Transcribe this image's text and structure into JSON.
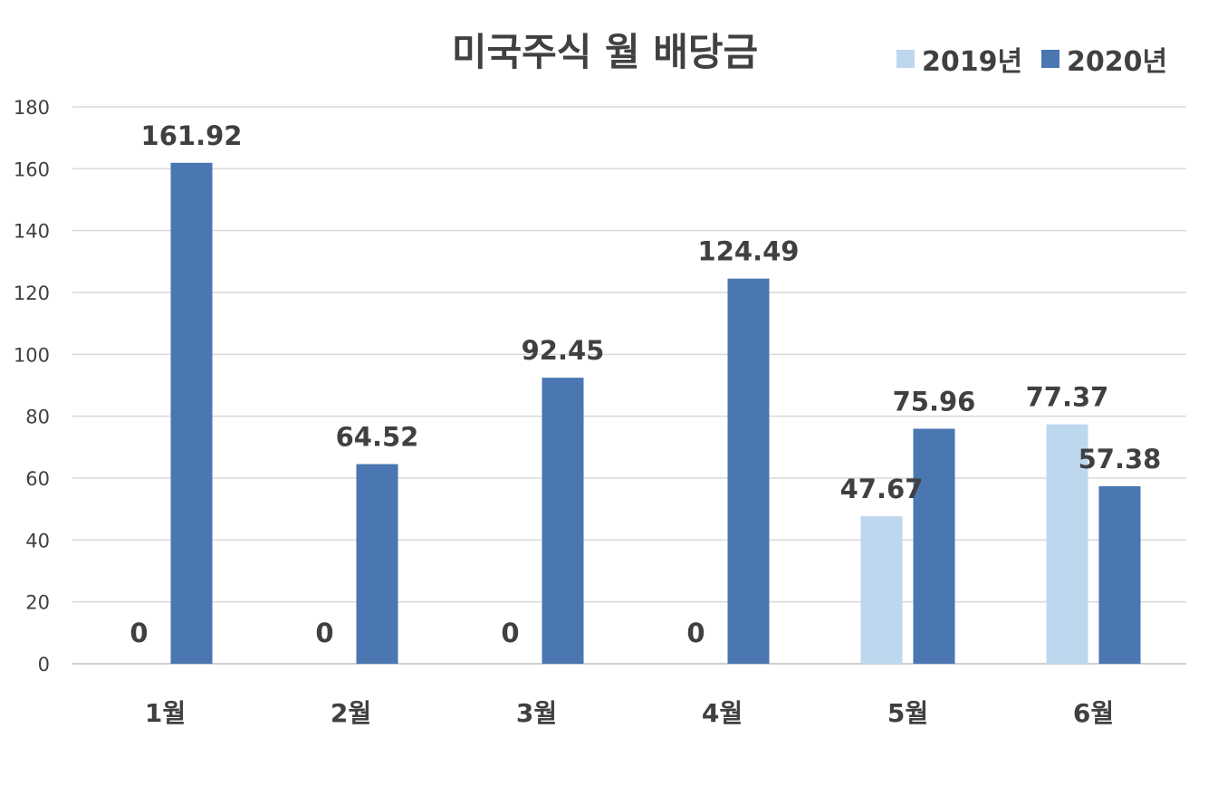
{
  "chart_data": {
    "type": "bar",
    "title": "미국주식 월 배당금",
    "categories": [
      "1월",
      "2월",
      "3월",
      "4월",
      "5월",
      "6월"
    ],
    "series": [
      {
        "name": "2019년",
        "values": [
          0,
          0,
          0,
          0,
          47.67,
          77.37
        ],
        "color": "#bdd7ee"
      },
      {
        "name": "2020년",
        "values": [
          161.92,
          64.52,
          92.45,
          124.49,
          75.96,
          57.38
        ],
        "color": "#4a76b1"
      }
    ],
    "data_labels": [
      [
        "0",
        "0",
        "0",
        "0",
        "47.67",
        "77.37"
      ],
      [
        "161.92",
        "64.52",
        "92.45",
        "124.49",
        "75.96",
        "57.38"
      ]
    ],
    "y_ticks": [
      "0",
      "20",
      "40",
      "60",
      "80",
      "100",
      "120",
      "140",
      "160",
      "180"
    ],
    "ylim": [
      0,
      180
    ],
    "grid": true,
    "legend_position": "top-right"
  }
}
